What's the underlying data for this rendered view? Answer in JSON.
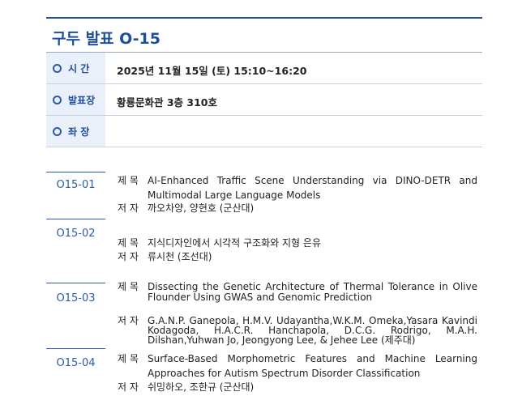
{
  "header": {
    "title": "구두 발표 O-15"
  },
  "info": [
    {
      "label": "시 간",
      "value": "2025년 11월 15일 (토) 15:10~16:20"
    },
    {
      "label": "발표장",
      "value": "황룡문화관 3층 310호"
    },
    {
      "label": "좌 장"
    }
  ],
  "labels": {
    "title": "제 목",
    "authors": "저 자"
  },
  "talks": [
    {
      "id": "O15-01",
      "title": "AI-Enhanced Traffic Scene Understanding via DINO-DETR and Multimodal Large Language Models",
      "authors": "까오차양, 양현호 (군산대)"
    },
    {
      "id": "O15-02",
      "title": "지식디자인에서 시각적 구조화와 지형 은유",
      "authors": "류시천 (조선대)"
    },
    {
      "id": "O15-03",
      "title": "Dissecting the Genetic Architecture of Thermal Tolerance in Olive Flounder Using GWAS and Genomic Prediction",
      "authors": "G.A.N.P. Ganepola, H.M.V. Udayantha,W.K.M. Omeka,Yasara Kavindi Kodagoda, H.A.C.R. Hanchapola, D.C.G. Rodrigo, M.A.H. Dilshan,Yuhwan Jo, Jeongyong Lee, & Jehee Lee (제주대)"
    },
    {
      "id": "O15-04",
      "title": "Surface-Based Morphometric Features and Machine Learning Approaches for Autism Spectrum Disorder Classification",
      "authors": "쉬밍하오, 조한규 (군산대)"
    }
  ]
}
